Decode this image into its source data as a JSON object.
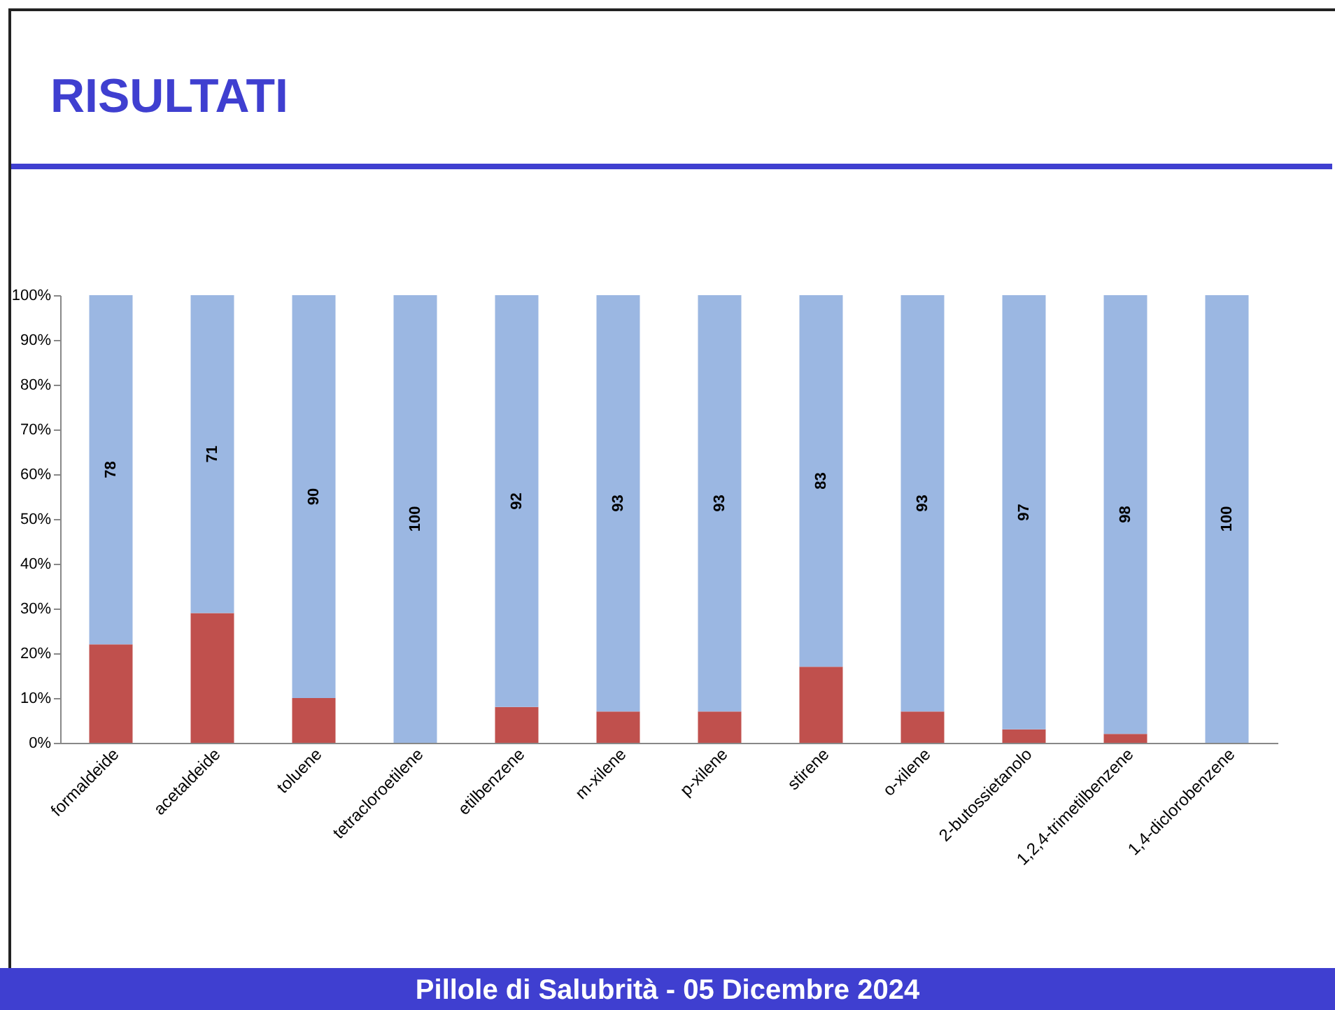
{
  "chart_data": {
    "type": "bar",
    "title": "RISULTATI",
    "stacked": true,
    "legend": false,
    "grid": false,
    "categories": [
      "formaldeide",
      "acetaldeide",
      "toluene",
      "tetracloroetilene",
      "etilbenzene",
      "m-xilene",
      "p-xilene",
      "stirene",
      "o-xilene",
      "2-butossietanolo",
      "1,2,4-trimetilbenzene",
      "1,4-diclorobenzene"
    ],
    "series": [
      {
        "color": "#c0504d",
        "values": [
          22,
          29,
          10,
          0,
          8,
          7,
          7,
          17,
          7,
          3,
          2,
          0
        ]
      },
      {
        "color": "#9bb7e2",
        "values": [
          78,
          71,
          90,
          100,
          92,
          93,
          93,
          83,
          93,
          97,
          98,
          100
        ],
        "value_labels": [
          "78",
          "71",
          "90",
          "100",
          "92",
          "93",
          "93",
          "83",
          "93",
          "97",
          "98",
          "100"
        ]
      }
    ],
    "ylim": [
      0,
      100
    ],
    "yticks": [
      {
        "value": 0,
        "label": "0%"
      },
      {
        "value": 10,
        "label": "10%"
      },
      {
        "value": 20,
        "label": "20%"
      },
      {
        "value": 30,
        "label": "30%"
      },
      {
        "value": 40,
        "label": "40%"
      },
      {
        "value": 50,
        "label": "50%"
      },
      {
        "value": 60,
        "label": "60%"
      },
      {
        "value": 70,
        "label": "70%"
      },
      {
        "value": 80,
        "label": "80%"
      },
      {
        "value": 90,
        "label": "90%"
      },
      {
        "value": 100,
        "label": "100%"
      }
    ],
    "annotations": [
      "Pillole di Salubrità - 05 Dicembre 2024"
    ]
  }
}
